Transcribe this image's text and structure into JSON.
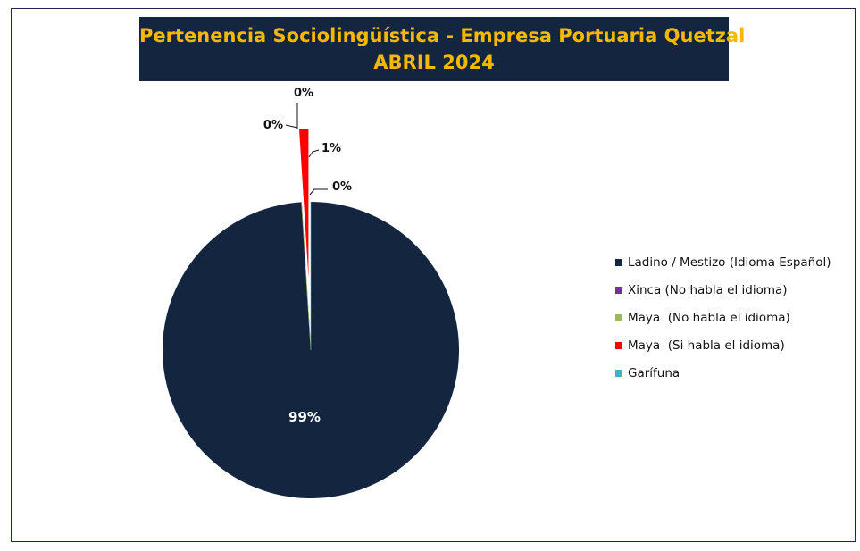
{
  "chart_data": {
    "type": "pie",
    "title": "Pertenencia Sociolingüística - Empresa Portuaria Quetzal",
    "subtitle": "ABRIL 2024",
    "legend_position": "right",
    "slices": [
      {
        "name": "Ladino / Mestizo (Idioma Español)",
        "value": 99,
        "label": "99%",
        "color": "#13253f"
      },
      {
        "name": "Xinca (No habla el idioma)",
        "value": 0,
        "label": "0%",
        "color": "#7030a0"
      },
      {
        "name": "Maya  (No habla el idioma)",
        "value": 0,
        "label": "0%",
        "color": "#9bbb59"
      },
      {
        "name": "Maya  (Si habla el idioma)",
        "value": 1,
        "label": "1%",
        "color": "#ff0000"
      },
      {
        "name": "Garífuna",
        "value": 0,
        "label": "0%",
        "color": "#4bacc6"
      }
    ]
  }
}
